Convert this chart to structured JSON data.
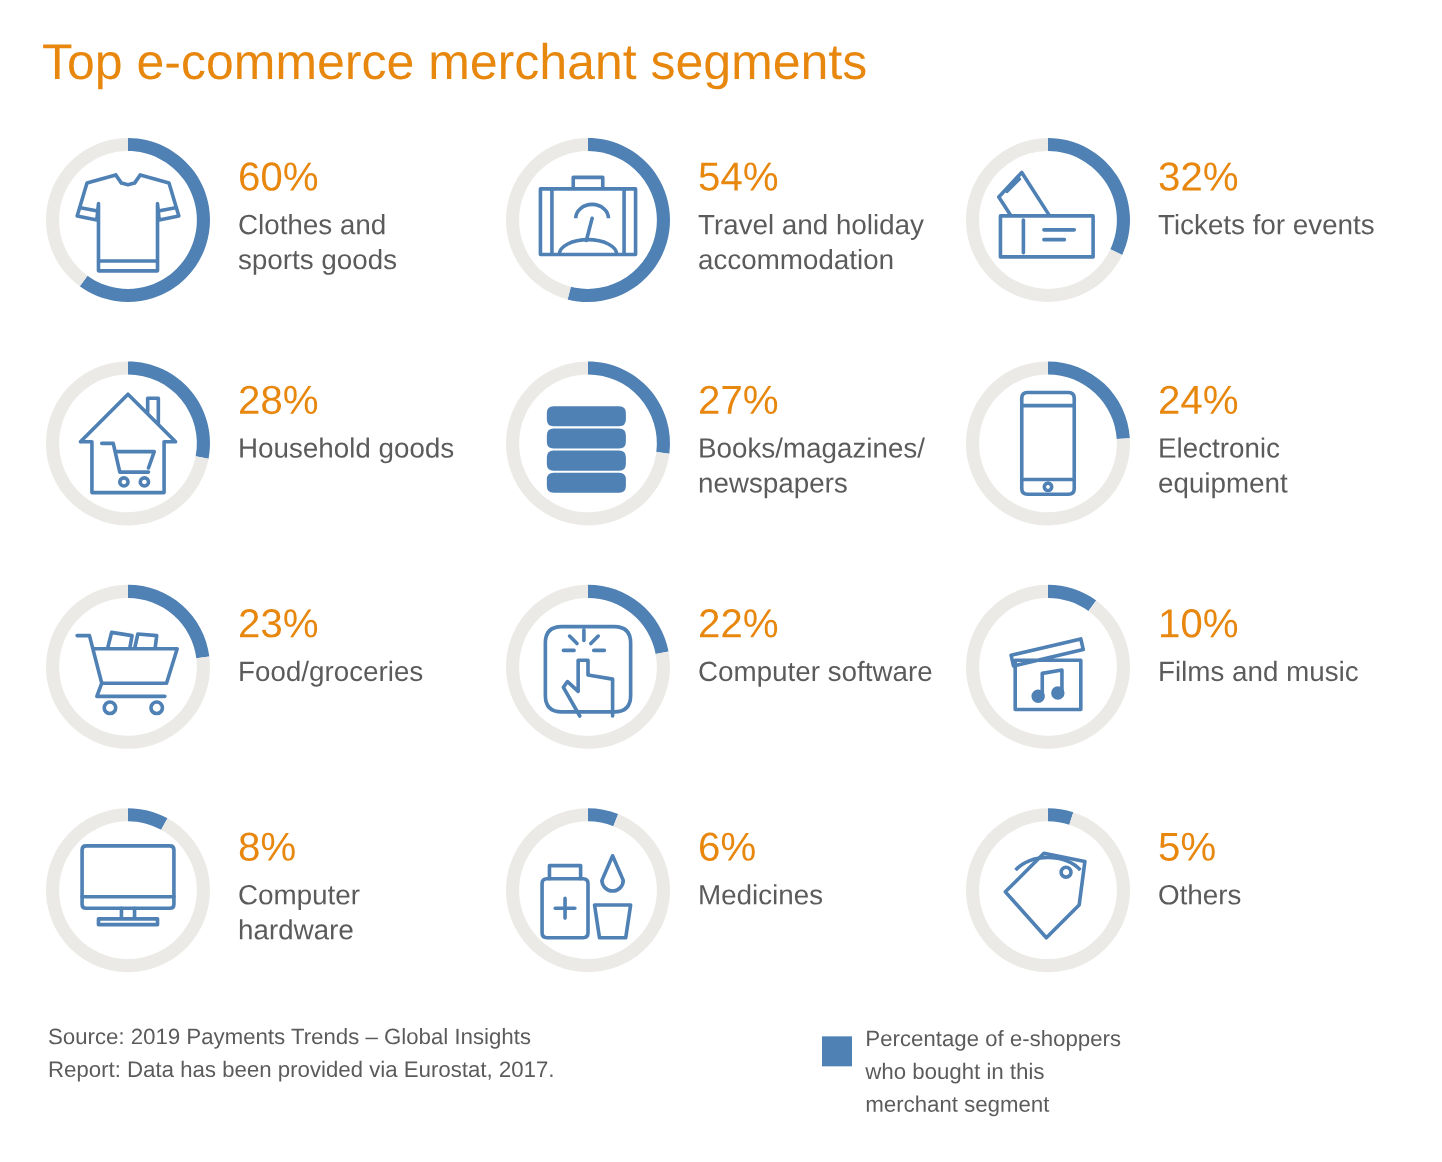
{
  "chart_data": [
    {
      "type": "other",
      "title": "Top e-commerce merchant segments"
    },
    {
      "type": "donut",
      "title": "60%",
      "subtitle": "Clothes and\nsports goods",
      "categories": [
        null,
        null
      ],
      "values": [
        60,
        40
      ],
      "colors": [
        "#4f81b5",
        "#ebeae7"
      ]
    },
    {
      "type": "donut",
      "title": "54%",
      "subtitle": "Travel and holiday\naccommodation",
      "categories": [
        null,
        null
      ],
      "values": [
        54,
        46
      ],
      "colors": [
        "#4f81b5",
        "#ebeae7"
      ]
    },
    {
      "type": "donut",
      "title": "32%",
      "subtitle": "Tickets for events",
      "categories": [
        null,
        null
      ],
      "values": [
        32,
        68
      ],
      "colors": [
        "#4f81b5",
        "#ebeae7"
      ]
    },
    {
      "type": "donut",
      "title": "28%",
      "subtitle": "Household goods",
      "categories": [
        null,
        null
      ],
      "values": [
        28,
        72
      ],
      "colors": [
        "#4f81b5",
        "#ebeae7"
      ]
    },
    {
      "type": "donut",
      "title": "27%",
      "subtitle": "Books/magazines/\nnewspapers",
      "categories": [
        null,
        null
      ],
      "values": [
        27,
        73
      ],
      "colors": [
        "#4f81b5",
        "#ebeae7"
      ]
    },
    {
      "type": "donut",
      "title": "24%",
      "subtitle": "Electronic\nequipment",
      "categories": [
        null,
        null
      ],
      "values": [
        24,
        76
      ],
      "colors": [
        "#4f81b5",
        "#ebeae7"
      ]
    },
    {
      "type": "donut",
      "title": "23%",
      "subtitle": "Food/groceries",
      "categories": [
        null,
        null
      ],
      "values": [
        23,
        77
      ],
      "colors": [
        "#4f81b5",
        "#ebeae7"
      ]
    },
    {
      "type": "donut",
      "title": "22%",
      "subtitle": "Computer software",
      "categories": [
        null,
        null
      ],
      "values": [
        22,
        78
      ],
      "colors": [
        "#4f81b5",
        "#ebeae7"
      ]
    },
    {
      "type": "donut",
      "title": "10%",
      "subtitle": "Films and music",
      "categories": [
        null,
        null
      ],
      "values": [
        10,
        90
      ],
      "colors": [
        "#4f81b5",
        "#ebeae7"
      ]
    },
    {
      "type": "donut",
      "title": "8%",
      "subtitle": "Computer\nhardware",
      "categories": [
        null,
        null
      ],
      "values": [
        8,
        92
      ],
      "colors": [
        "#4f81b5",
        "#ebeae7"
      ]
    },
    {
      "type": "donut",
      "title": "6%",
      "subtitle": "Medicines",
      "categories": [
        null,
        null
      ],
      "values": [
        6,
        94
      ],
      "colors": [
        "#4f81b5",
        "#ebeae7"
      ]
    },
    {
      "type": "donut",
      "title": "5%",
      "subtitle": "Others",
      "categories": [
        "Percentage of e-shoppers\nwho bought in this\nmerchant segment",
        null
      ],
      "values": [
        5,
        95
      ],
      "colors": [
        "#4f81b5",
        "#ebeae7"
      ],
      "legend": "bottom",
      "annotations": [
        "Source: 2019 Payments Trends – Global Insights\nReport: Data has been provided via Eurostat, 2017."
      ]
    }
  ]
}
